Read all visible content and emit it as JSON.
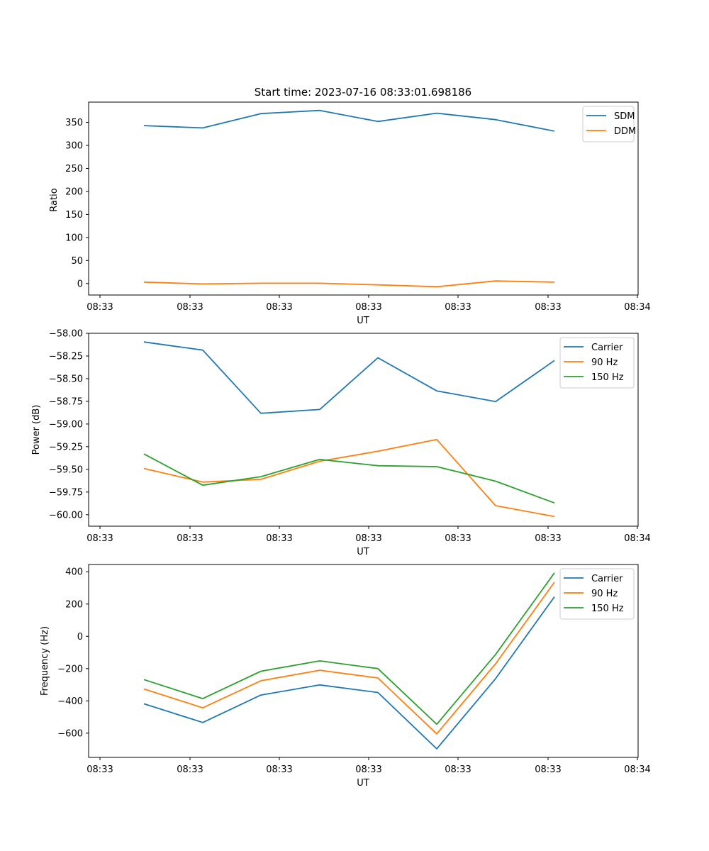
{
  "chart_data": [
    {
      "type": "line",
      "title": "Start time: 2023-07-16 08:33:01.698186",
      "xlabel": "UT",
      "ylabel": "Ratio",
      "x_tick_labels": [
        "08:33",
        "08:33",
        "08:33",
        "08:33",
        "08:33",
        "08:33",
        "08:34"
      ],
      "y_ticks": [
        0,
        50,
        100,
        150,
        200,
        250,
        300,
        350
      ],
      "y_tick_labels": [
        "0",
        "50",
        "100",
        "150",
        "200",
        "250",
        "300",
        "350"
      ],
      "ylim": [
        -25,
        394
      ],
      "legend_position": "top-right",
      "series": [
        {
          "name": "SDM",
          "color": "#1f77b4",
          "values": [
            343,
            338,
            369,
            376,
            352,
            370,
            356,
            331
          ]
        },
        {
          "name": "DDM",
          "color": "#ff7f0e",
          "values": [
            3,
            -1,
            0.5,
            0.5,
            -3,
            -7,
            5.5,
            3
          ]
        }
      ]
    },
    {
      "type": "line",
      "title": "",
      "xlabel": "UT",
      "ylabel": "Power (dB)",
      "x_tick_labels": [
        "08:33",
        "08:33",
        "08:33",
        "08:33",
        "08:33",
        "08:33",
        "08:34"
      ],
      "y_ticks": [
        -60.0,
        -59.75,
        -59.5,
        -59.25,
        -59.0,
        -58.75,
        -58.5,
        -58.25,
        -58.0
      ],
      "y_tick_labels": [
        "−60.00",
        "−59.75",
        "−59.50",
        "−59.25",
        "−59.00",
        "−58.75",
        "−58.50",
        "−58.25",
        "−58.00"
      ],
      "ylim": [
        -60.1265,
        -58.0
      ],
      "legend_position": "top-right",
      "series": [
        {
          "name": "Carrier",
          "color": "#1f77b4",
          "values": [
            -58.095,
            -58.185,
            -58.882,
            -58.84,
            -58.27,
            -58.635,
            -58.752,
            -58.3
          ]
        },
        {
          "name": "90 Hz",
          "color": "#ff7f0e",
          "values": [
            -59.49,
            -59.64,
            -59.61,
            -59.41,
            -59.3,
            -59.17,
            -59.9,
            -60.02
          ]
        },
        {
          "name": "150 Hz",
          "color": "#2ca02c",
          "values": [
            -59.33,
            -59.675,
            -59.58,
            -59.39,
            -59.46,
            -59.47,
            -59.63,
            -59.87
          ]
        }
      ]
    },
    {
      "type": "line",
      "title": "",
      "xlabel": "UT",
      "ylabel": "Frequency (Hz)",
      "x_tick_labels": [
        "08:33",
        "08:33",
        "08:33",
        "08:33",
        "08:33",
        "08:33",
        "08:34"
      ],
      "y_ticks": [
        -600,
        -400,
        -200,
        0,
        200,
        400
      ],
      "y_tick_labels": [
        "−600",
        "−400",
        "−200",
        "0",
        "200",
        "400"
      ],
      "ylim": [
        -750,
        445
      ],
      "legend_position": "top-right",
      "series": [
        {
          "name": "Carrier",
          "color": "#1f77b4",
          "values": [
            -418,
            -534,
            -364,
            -301,
            -348,
            -697,
            -262,
            245
          ]
        },
        {
          "name": "90 Hz",
          "color": "#ff7f0e",
          "values": [
            -326,
            -443,
            -275,
            -210,
            -258,
            -604,
            -170,
            335
          ]
        },
        {
          "name": "150 Hz",
          "color": "#2ca02c",
          "values": [
            -268,
            -386,
            -216,
            -152,
            -200,
            -545,
            -112,
            393
          ]
        }
      ]
    }
  ]
}
